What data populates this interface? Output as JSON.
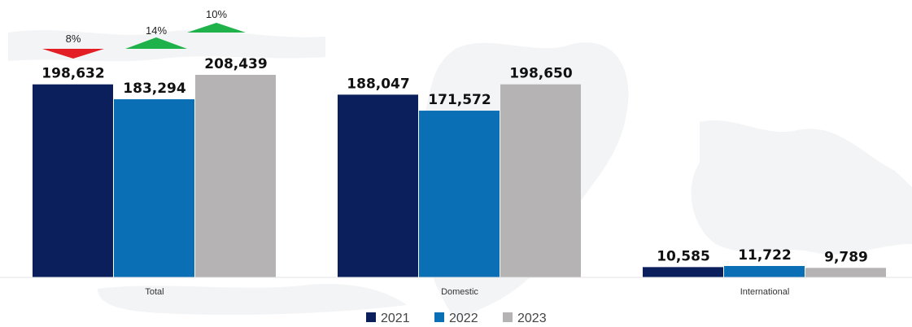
{
  "chart_data": {
    "type": "bar",
    "categories": [
      "Total",
      "Domestic",
      "International"
    ],
    "series": [
      {
        "name": "2021",
        "color": "#0b1f5c",
        "values": [
          198632,
          188047,
          10585
        ]
      },
      {
        "name": "2022",
        "color": "#0a6fb5",
        "values": [
          183294,
          171572,
          11722
        ]
      },
      {
        "name": "2023",
        "color": "#b5b3b4",
        "values": [
          208439,
          198650,
          9789
        ]
      }
    ],
    "value_labels": [
      [
        "198,632",
        "188,047",
        "10,585"
      ],
      [
        "183,294",
        "171,572",
        "11,722"
      ],
      [
        "208,439",
        "198,650",
        "9,789"
      ]
    ],
    "annotations": [
      {
        "text": "8%",
        "direction": "down",
        "color": "#e31e24"
      },
      {
        "text": "14%",
        "direction": "up",
        "color": "#1fb24a"
      },
      {
        "text": "10%",
        "direction": "up",
        "color": "#1fb24a"
      }
    ],
    "ylim": [
      0,
      210000
    ],
    "legend_position": "bottom-center",
    "grid": false
  }
}
